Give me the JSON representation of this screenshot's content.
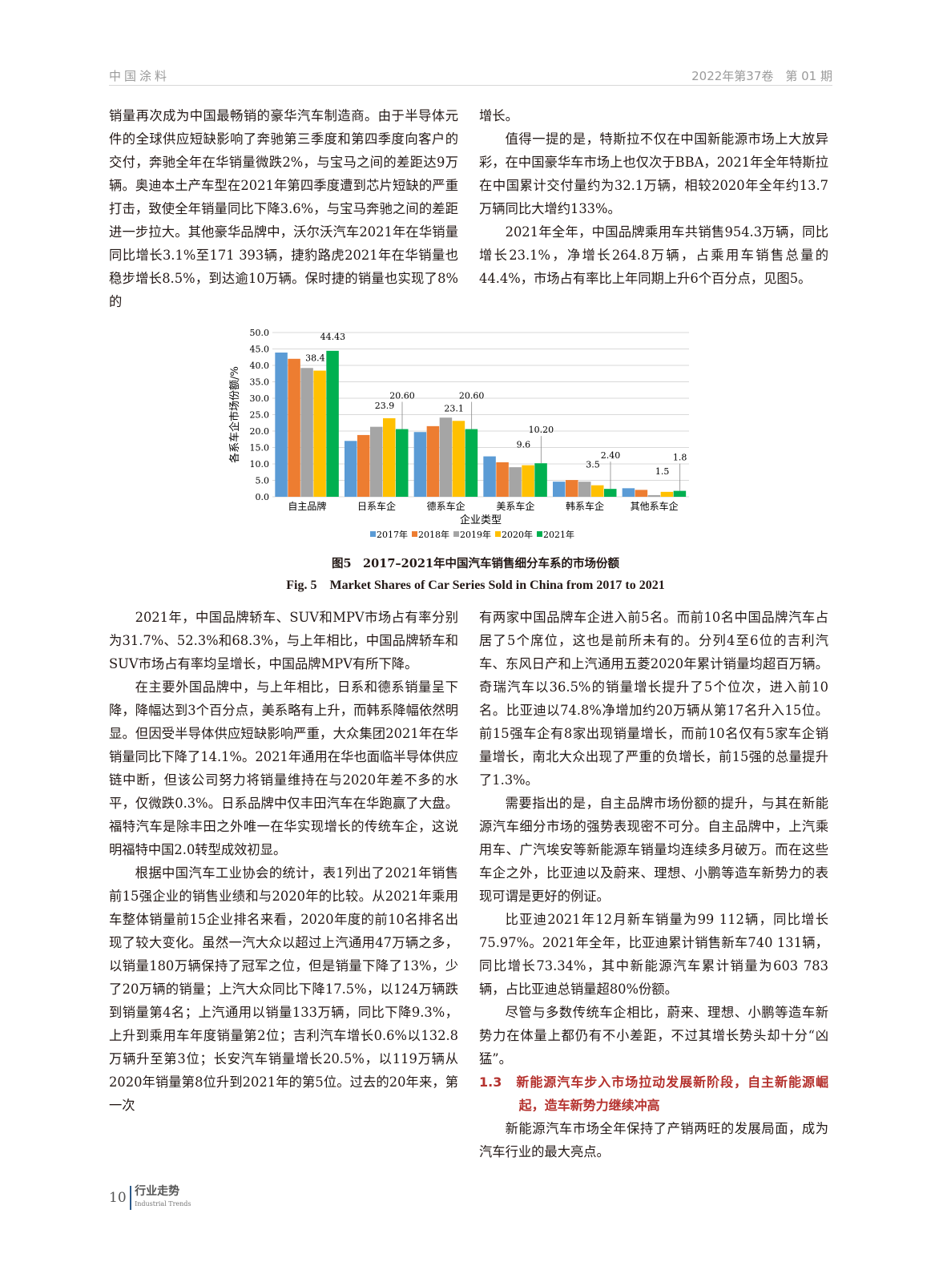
{
  "header": {
    "journal": "中国涂料",
    "issue": "2022年第37卷　第 01 期"
  },
  "left_top": [
    "销量再次成为中国最畅销的豪华汽车制造商。由于半导体元件的全球供应短缺影响了奔驰第三季度和第四季度向客户的交付，奔驰全年在华销量微跌2%，与宝马之间的差距达9万辆。奥迪本土产车型在2021年第四季度遭到芯片短缺的严重打击，致使全年销量同比下降3.6%，与宝马奔驰之间的差距进一步拉大。其他豪华品牌中，沃尔沃汽车2021年在华销量同比增长3.1%至171 393辆，捷豹路虎2021年在华销量也稳步增长8.5%，到达逾10万辆。保时捷的销量也实现了8%的"
  ],
  "right_top": [
    "增长。",
    "值得一提的是，特斯拉不仅在中国新能源市场上大放异彩，在中国豪华车市场上也仅次于BBA，2021年全年特斯拉在中国累计交付量约为32.1万辆，相较2020年全年约13.7万辆同比大增约133%。",
    "2021年全年，中国品牌乘用车共销售954.3万辆，同比增长23.1%，净增长264.8万辆，占乘用车销售总量的44.4%，市场占有率比上年同期上升6个百分点，见图5。"
  ],
  "figure": {
    "caption_cn": "图5　2017–2021年中国汽车销售细分车系的市场份额",
    "caption_en": "Fig. 5　Market Shares of Car Series Sold in China from 2017 to 2021"
  },
  "chart_data": {
    "type": "bar",
    "categories": [
      "自主品牌",
      "日系车企",
      "德系车企",
      "美系车企",
      "韩系车企",
      "其他系车企"
    ],
    "series": [
      {
        "name": "2017年",
        "color": "#5b9bd5",
        "values": [
          43.9,
          17.0,
          19.7,
          12.3,
          4.6,
          2.6
        ]
      },
      {
        "name": "2018年",
        "color": "#ed7d31",
        "values": [
          42.0,
          18.8,
          21.5,
          10.5,
          5.1,
          2.1
        ]
      },
      {
        "name": "2019年",
        "color": "#a5a5a5",
        "values": [
          39.2,
          21.3,
          24.1,
          9.0,
          4.6,
          0.5
        ]
      },
      {
        "name": "2020年",
        "color": "#ffc000",
        "values": [
          38.4,
          23.9,
          23.1,
          9.6,
          3.5,
          1.5
        ]
      },
      {
        "name": "2021年",
        "color": "#00b050",
        "values": [
          44.43,
          20.6,
          20.6,
          10.2,
          2.4,
          1.8
        ]
      }
    ],
    "data_labels": [
      {
        "series": 3,
        "cat": 0,
        "text": "38.4"
      },
      {
        "series": 4,
        "cat": 0,
        "text": "44.43"
      },
      {
        "series": 3,
        "cat": 1,
        "text": "23.9"
      },
      {
        "series": 4,
        "cat": 1,
        "text": "20.60"
      },
      {
        "series": 3,
        "cat": 2,
        "text": "23.1"
      },
      {
        "series": 4,
        "cat": 2,
        "text": "20.60"
      },
      {
        "series": 3,
        "cat": 3,
        "text": "9.6"
      },
      {
        "series": 4,
        "cat": 3,
        "text": "10.20"
      },
      {
        "series": 3,
        "cat": 4,
        "text": "3.5"
      },
      {
        "series": 4,
        "cat": 4,
        "text": "2.40"
      },
      {
        "series": 3,
        "cat": 5,
        "text": "1.5"
      },
      {
        "series": 4,
        "cat": 5,
        "text": "1.8"
      }
    ],
    "xlabel": "企业类型",
    "ylabel": "各系车企市场份额/%",
    "ylim": [
      0,
      50
    ],
    "yticks": [
      "0.0",
      "5.0",
      "10.0",
      "15.0",
      "20.0",
      "25.0",
      "30.0",
      "35.0",
      "40.0",
      "45.0",
      "50.0"
    ],
    "grid": true,
    "legend": "bottom"
  },
  "left_bottom": [
    "2021年，中国品牌轿车、SUV和MPV市场占有率分别为31.7%、52.3%和68.3%，与上年相比，中国品牌轿车和SUV市场占有率均呈增长，中国品牌MPV有所下降。",
    "在主要外国品牌中，与上年相比，日系和德系销量呈下降，降幅达到3个百分点，美系略有上升，而韩系降幅依然明显。但因受半导体供应短缺影响严重，大众集团2021年在华销量同比下降了14.1%。2021年通用在华也面临半导体供应链中断，但该公司努力将销量维持在与2020年差不多的水平，仅微跌0.3%。日系品牌中仅丰田汽车在华跑赢了大盘。福特汽车是除丰田之外唯一在华实现增长的传统车企，这说明福特中国2.0转型成效初显。",
    "根据中国汽车工业协会的统计，表1列出了2021年销售前15强企业的销售业绩和与2020年的比较。从2021年乘用车整体销量前15企业排名来看，2020年度的前10名排名出现了较大变化。虽然一汽大众以超过上汽通用47万辆之多，以销量180万辆保持了冠军之位，但是销量下降了13%，少了20万辆的销量；上汽大众同比下降17.5%，以124万辆跌到销量第4名；上汽通用以销量133万辆，同比下降9.3%，上升到乘用车年度销量第2位；吉利汽车增长0.6%以132.8万辆升至第3位；长安汽车销量增长20.5%，以119万辆从2020年销量第8位升到2021年的第5位。过去的20年来，第一次"
  ],
  "right_bottom": [
    "有两家中国品牌车企进入前5名。而前10名中国品牌汽车占居了5个席位，这也是前所未有的。分列4至6位的吉利汽车、东风日产和上汽通用五菱2020年累计销量均超百万辆。奇瑞汽车以36.5%的销量增长提升了5个位次，进入前10名。比亚迪以74.8%净增加约20万辆从第17名升入15位。前15强车企有8家出现销量增长，而前10名仅有5家车企销量增长，南北大众出现了严重的负增长，前15强的总量提升了1.3%。",
    "需要指出的是，自主品牌市场份额的提升，与其在新能源汽车细分市场的强势表现密不可分。自主品牌中，上汽乘用车、广汽埃安等新能源车销量均连续多月破万。而在这些车企之外，比亚迪以及蔚来、理想、小鹏等造车新势力的表现可谓是更好的例证。",
    "比亚迪2021年12月新车销量为99 112辆，同比增长75.97%。2021年全年，比亚迪累计销售新车740 131辆，同比增长73.34%，其中新能源汽车累计销量为603 783辆，占比亚迪总销量超80%份额。",
    "尽管与多数传统车企相比，蔚来、理想、小鹏等造车新势力在体量上都仍有不小差距，不过其增长势头却十分“凶猛”。"
  ],
  "section": {
    "number": "1.3",
    "title": "新能源汽车步入市场拉动发展新阶段，自主新能源崛起，造车新势力继续冲高"
  },
  "right_last": "新能源汽车市场全年保持了产销两旺的发展局面，成为汽车行业的最大亮点。",
  "footer": {
    "page": "10",
    "section_cn": "行业走势",
    "section_en": "Industrial Trends"
  }
}
